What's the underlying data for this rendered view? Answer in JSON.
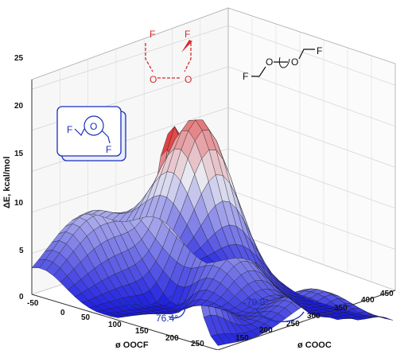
{
  "chart_data": {
    "type": "surface",
    "zlabel": "ΔE, kcal/mol",
    "xlabel": "ø OOCF",
    "ylabel": "ø COOC",
    "z_ticks": [
      "0",
      "5",
      "10",
      "15",
      "20",
      "25"
    ],
    "x_ticks": [
      "-50",
      "0",
      "50",
      "100",
      "150",
      "200",
      "250"
    ],
    "y_ticks": [
      "150",
      "200",
      "250",
      "300",
      "350",
      "400",
      "450"
    ],
    "zlim": [
      0,
      27
    ],
    "xlim": [
      -60,
      270
    ],
    "ylim": [
      130,
      460
    ],
    "grid": true,
    "colormap": [
      "#1a1adf",
      "#e9e9f0",
      "#e02020"
    ],
    "annotations": [
      {
        "text": "-70.9°"
      },
      {
        "text": "76.4°"
      },
      {
        "text": "-70.9°"
      }
    ],
    "molecule_labels": {
      "top": [
        "F",
        "F",
        "O",
        "O"
      ],
      "right": [
        "F",
        "O",
        "O",
        "F"
      ],
      "left": [
        "F",
        "O",
        "F"
      ]
    }
  }
}
